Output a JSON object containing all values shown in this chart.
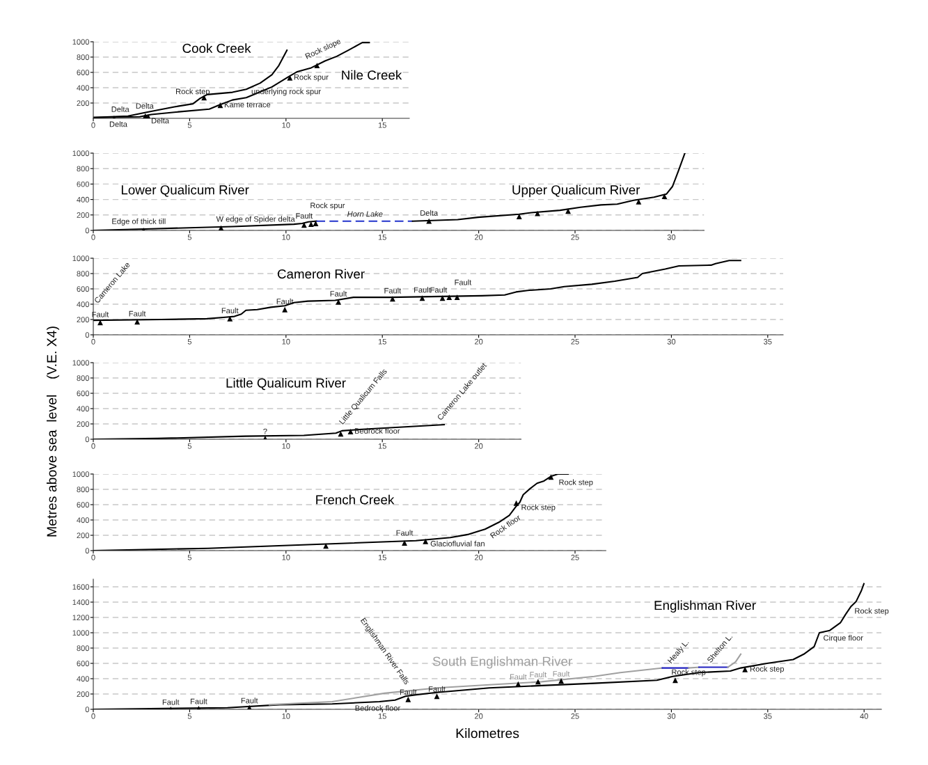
{
  "chart_data": [
    {
      "type": "line",
      "xlim": [
        0,
        16.4
      ],
      "xticks": [
        0,
        5,
        10,
        15
      ],
      "ylim": [
        0,
        1000
      ],
      "yticks": [
        200,
        400,
        600,
        800,
        1000
      ],
      "grid": "y",
      "series": [
        {
          "name": "Cook Creek",
          "color": "#000000",
          "x": [
            0,
            1.8,
            2.77,
            4.21,
            5.17,
            5.54,
            5.9,
            7.22,
            7.94,
            8.66,
            9.27,
            9.63,
            10.05
          ],
          "values": [
            10,
            30,
            80,
            150,
            190,
            260,
            310,
            340,
            380,
            460,
            570,
            690,
            890
          ]
        },
        {
          "name": "Nile Creek",
          "color": "#000000",
          "x": [
            0,
            2.41,
            3.01,
            4.21,
            6.02,
            6.5,
            7.22,
            7.94,
            8.42,
            9.27,
            10.11,
            10.59,
            11.31,
            12.03,
            12.64,
            13.24,
            13.96,
            14.32
          ],
          "values": [
            10,
            20,
            50,
            80,
            120,
            170,
            240,
            270,
            320,
            410,
            540,
            610,
            660,
            750,
            810,
            890,
            990,
            990
          ]
        },
        {
          "type": "scatter",
          "marker": "triangle",
          "color": "#000000",
          "x": [
            1.08,
            2.7,
            2.85,
            5.75,
            6.59,
            10.2,
            11.61
          ],
          "values": [
            0,
            30,
            20,
            270,
            170,
            530,
            690
          ]
        }
      ],
      "annotations": [
        {
          "text": "Delta",
          "x": 1.08,
          "y": 0
        },
        {
          "text": "Delta",
          "x": 1.08,
          "y": 0
        },
        {
          "text": "Delta",
          "x": 2.7,
          "y": 30
        },
        {
          "text": "Delta",
          "x": 2.85,
          "y": 20
        },
        {
          "text": "Rock step",
          "x": 5.75,
          "y": 270
        },
        {
          "text": "Kame terrace",
          "x": 6.59,
          "y": 170
        },
        {
          "text": "underlying rock spur",
          "x": 8.2,
          "y": 270
        },
        {
          "text": "Rock spur",
          "x": 10.2,
          "y": 530
        },
        {
          "text": "Rock slope",
          "x": 11.61,
          "y": 690
        }
      ]
    },
    {
      "type": "line",
      "xlim": [
        0,
        31.7
      ],
      "xticks": [
        0,
        5,
        10,
        15,
        20,
        25,
        30
      ],
      "ylim": [
        0,
        1000
      ],
      "yticks": [
        0,
        200,
        400,
        600,
        800,
        1000
      ],
      "grid": "y",
      "series": [
        {
          "name": "Lower Qualicum River",
          "color": "#000000",
          "x": [
            0,
            2.97,
            7.22,
            10.41,
            10.84,
            11.16,
            11.58
          ],
          "values": [
            0,
            20,
            50,
            80,
            90,
            110,
            120
          ]
        },
        {
          "color": "#2233cc",
          "line_style": "dashed",
          "x": [
            11.58,
            16.57
          ],
          "values": [
            120,
            120
          ]
        },
        {
          "name": "Upper Qualicum River",
          "color": "#000000",
          "x": [
            16.57,
            18.91,
            19.97,
            22.1,
            22.73,
            24.22,
            25.28,
            26.34,
            27.19,
            28.04,
            29.1,
            29.74,
            30.06,
            30.38,
            30.7
          ],
          "values": [
            120,
            140,
            170,
            210,
            230,
            260,
            300,
            330,
            340,
            390,
            430,
            470,
            570,
            780,
            1000
          ]
        },
        {
          "type": "scatter",
          "marker": "triangle",
          "color": "#000000",
          "x": [
            2.61,
            6.63,
            10.94,
            11.3,
            11.54,
            17.42,
            22.1,
            23.05,
            24.64,
            28.3,
            29.64
          ],
          "values": [
            0,
            30,
            70,
            80,
            90,
            120,
            180,
            220,
            250,
            370,
            440
          ]
        }
      ],
      "annotations": [
        {
          "text": "Edge of thick till",
          "x": 2.61,
          "y": 0
        },
        {
          "text": "W edge of Spider delta",
          "x": 6.63,
          "y": 30
        },
        {
          "text": "Fault",
          "x": 10.94,
          "y": 70
        },
        {
          "text": "Rock spur",
          "x": 11.3,
          "y": 80
        },
        {
          "text": "Horn Lake",
          "x": 14.1,
          "y": 120
        },
        {
          "text": "Delta",
          "x": 17.42,
          "y": 120
        }
      ]
    },
    {
      "type": "line",
      "title": "Cameron River",
      "xlim": [
        0,
        35.8
      ],
      "xticks": [
        0,
        5,
        10,
        15,
        20,
        25,
        30,
        35
      ],
      "ylim": [
        0,
        1000
      ],
      "yticks": [
        0,
        200,
        400,
        600,
        800,
        1000
      ],
      "grid": "y",
      "series": [
        {
          "color": "#000000",
          "x": [
            0,
            3.52,
            5.9,
            6.85,
            7.32,
            7.68,
            7.92,
            8.51,
            9.22,
            9.94,
            10.41,
            11.13,
            12.55,
            13.5,
            15.41,
            20.16,
            21.35,
            21.94,
            22.54,
            23.73,
            24.44,
            25.87,
            27.06,
            28.25,
            28.49,
            29.68,
            30.39,
            32.06,
            32.29,
            33.0,
            33.59
          ],
          "values": [
            190,
            200,
            210,
            230,
            240,
            270,
            320,
            330,
            360,
            380,
            420,
            440,
            450,
            490,
            490,
            510,
            520,
            560,
            580,
            600,
            630,
            660,
            700,
            750,
            800,
            860,
            900,
            910,
            930,
            970,
            970
          ]
        },
        {
          "type": "scatter",
          "marker": "triangle",
          "color": "#000000",
          "x": [
            0.36,
            2.28,
            7.09,
            9.94,
            12.72,
            15.53,
            17.07,
            18.12,
            18.47,
            18.88
          ],
          "values": [
            160,
            170,
            210,
            330,
            430,
            470,
            480,
            480,
            490,
            490
          ]
        }
      ],
      "annotations": [
        {
          "text": "Cameron Lake",
          "x": 0.3,
          "y": 190
        },
        {
          "text": "Fault",
          "x": 0.36,
          "y": 160
        },
        {
          "text": "Fault",
          "x": 2.28,
          "y": 170
        },
        {
          "text": "Fault",
          "x": 7.09,
          "y": 210
        },
        {
          "text": "Fault",
          "x": 9.94,
          "y": 330
        },
        {
          "text": "Fault",
          "x": 12.72,
          "y": 430
        },
        {
          "text": "Fault",
          "x": 15.53,
          "y": 470
        },
        {
          "text": "Fault",
          "x": 17.07,
          "y": 480
        },
        {
          "text": "Fault",
          "x": 18.12,
          "y": 480
        },
        {
          "text": "Fault",
          "x": 18.88,
          "y": 490
        }
      ]
    },
    {
      "type": "line",
      "title": "Little Qualicum River",
      "ylabel": "Metres above sea  level    (V.E. X4)",
      "xlim": [
        0,
        22.2
      ],
      "xticks": [
        0,
        5,
        10,
        15,
        20
      ],
      "ylim": [
        0,
        1000
      ],
      "yticks": [
        0,
        200,
        400,
        600,
        800,
        1000
      ],
      "grid": "y",
      "series": [
        {
          "color": "#000000",
          "x": [
            0,
            3.34,
            7.89,
            10.93,
            12.59,
            12.9,
            13.96,
            18.21
          ],
          "values": [
            0,
            10,
            40,
            50,
            80,
            110,
            130,
            190
          ]
        },
        {
          "type": "scatter",
          "marker": "triangle",
          "color": "#000000",
          "x": [
            8.92,
            12.84,
            13.35
          ],
          "values": [
            10,
            70,
            100
          ]
        }
      ],
      "annotations": [
        {
          "text": "?",
          "x": 8.92,
          "y": 10
        },
        {
          "text": "Little Qualicum Falls",
          "x": 12.9,
          "y": 110
        },
        {
          "text": "Bedrock floor",
          "x": 13.35,
          "y": 100
        },
        {
          "text": "Cameron Lake outlet",
          "x": 18.2,
          "y": 190
        }
      ]
    },
    {
      "type": "line",
      "title": "French Creek",
      "xlim": [
        0,
        26.6
      ],
      "xticks": [
        0,
        5,
        10,
        15,
        20,
        25
      ],
      "ylim": [
        0,
        1000
      ],
      "yticks": [
        0,
        200,
        400,
        600,
        800,
        1000
      ],
      "grid": "y",
      "series": [
        {
          "color": "#000000",
          "x": [
            0,
            5.96,
            11.35,
            16.74,
            18.53,
            19.43,
            20.33,
            21.05,
            21.59,
            21.95,
            22.13,
            22.31,
            22.67,
            23.03,
            23.39,
            23.75,
            24.11,
            24.64
          ],
          "values": [
            0,
            30,
            80,
            130,
            170,
            210,
            280,
            370,
            460,
            580,
            630,
            730,
            810,
            880,
            910,
            970,
            1000,
            1000
          ]
        },
        {
          "type": "scatter",
          "marker": "triangle",
          "color": "#000000",
          "x": [
            12.07,
            16.15,
            17.24,
            21.95,
            23.75
          ],
          "values": [
            60,
            100,
            120,
            620,
            960
          ]
        }
      ],
      "annotations": [
        {
          "text": "Fault",
          "x": 16.15,
          "y": 100
        },
        {
          "text": "Glaciofluvial fan",
          "x": 17.24,
          "y": 120
        },
        {
          "text": "Rock floor",
          "x": 21.0,
          "y": 370
        },
        {
          "text": "Rock step",
          "x": 21.95,
          "y": 620
        },
        {
          "text": "Rock step",
          "x": 23.75,
          "y": 960
        }
      ]
    },
    {
      "type": "line",
      "xlabel": "Kilometres",
      "xlim": [
        0,
        40.9
      ],
      "xticks": [
        0,
        5,
        10,
        15,
        20,
        25,
        30,
        35,
        40
      ],
      "ylim": [
        0,
        1700
      ],
      "yticks": [
        0,
        200,
        400,
        600,
        800,
        1000,
        1200,
        1400,
        1600
      ],
      "grid": "y",
      "series": [
        {
          "name": "Englishman River",
          "color": "#000000",
          "x": [
            0,
            6.96,
            9.68,
            12.4,
            14.85,
            15.66,
            16.2,
            16.75,
            17.83,
            20.55,
            23.27,
            25.99,
            29.25,
            30.07,
            31.43,
            33.06,
            33.6,
            34.96,
            36.32,
            36.87,
            37.41,
            37.68,
            38.22,
            38.77,
            39.04,
            39.31,
            39.59,
            39.86,
            39.99
          ],
          "values": [
            0,
            20,
            60,
            70,
            100,
            120,
            170,
            190,
            220,
            280,
            310,
            340,
            380,
            430,
            480,
            500,
            540,
            600,
            650,
            720,
            820,
            1000,
            1030,
            1130,
            1240,
            1340,
            1410,
            1550,
            1640
          ]
        },
        {
          "name": "South Englishman River",
          "color": "#a0a0a0",
          "x": [
            9.14,
            12.4,
            15.12,
            17.84,
            20.55,
            23.27,
            25.99,
            27.35,
            29.53
          ],
          "values": [
            60,
            100,
            210,
            280,
            320,
            360,
            430,
            480,
            540
          ]
        },
        {
          "color": "#2020c0",
          "x": [
            29.53,
            30.89
          ],
          "values": [
            540,
            540
          ]
        },
        {
          "color": "#a0a0a0",
          "x": [
            30.89,
            31.43
          ],
          "values": [
            540,
            550
          ]
        },
        {
          "color": "#2020c0",
          "x": [
            31.43,
            32.93
          ],
          "values": [
            550,
            550
          ]
        },
        {
          "color": "#a0a0a0",
          "x": [
            32.93,
            33.33,
            33.6
          ],
          "values": [
            550,
            620,
            720
          ]
        },
        {
          "type": "scatter",
          "marker": "triangle",
          "color": "#000000",
          "x": [
            4.02,
            5.47,
            8.1,
            16.34,
            17.83,
            22.05,
            23.08,
            24.28,
            30.2,
            33.82
          ],
          "values": [
            0,
            10,
            20,
            130,
            170,
            330,
            360,
            370,
            380,
            520
          ]
        }
      ],
      "annotations": [
        {
          "text": "Fault",
          "x": 4.02,
          "y": 0
        },
        {
          "text": "Fault",
          "x": 5.47,
          "y": 10
        },
        {
          "text": "Fault",
          "x": 8.1,
          "y": 20
        },
        {
          "text": "Englishman River Falls",
          "x": 16.34,
          "y": 130
        },
        {
          "text": "Bedrock floor",
          "x": 16.34,
          "y": 130
        },
        {
          "text": "Fault",
          "x": 16.34,
          "y": 130
        },
        {
          "text": "Fault",
          "x": 17.83,
          "y": 170
        },
        {
          "text": "Fault",
          "x": 22.05,
          "y": 330
        },
        {
          "text": "Fault",
          "x": 23.08,
          "y": 360
        },
        {
          "text": "Fault",
          "x": 24.28,
          "y": 370
        },
        {
          "text": "Healy L.",
          "x": 30.2,
          "y": 540
        },
        {
          "text": "Rock step",
          "x": 30.2,
          "y": 380
        },
        {
          "text": "Shelton L.",
          "x": 32.2,
          "y": 550
        },
        {
          "text": "Rock step",
          "x": 33.82,
          "y": 520
        },
        {
          "text": "Cirque floor",
          "x": 37.68,
          "y": 1000
        },
        {
          "text": "Rock step",
          "x": 39.3,
          "y": 1340
        }
      ]
    }
  ]
}
